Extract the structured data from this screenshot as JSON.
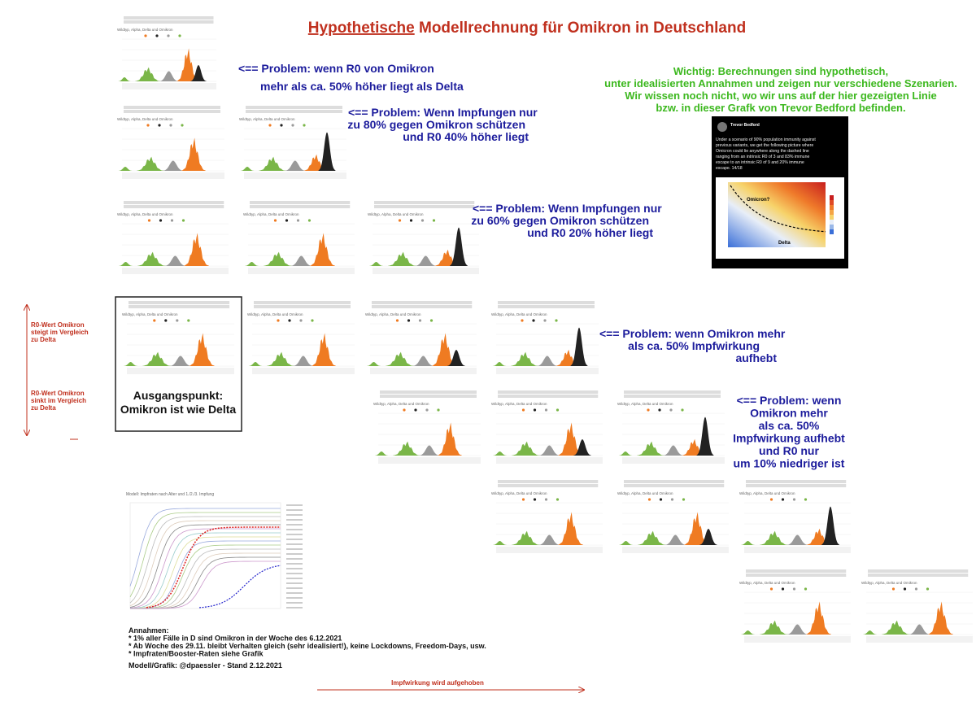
{
  "title_underlined": "Hypothetische",
  "title_rest": "Modellrechnung für Omikron in Deutschland",
  "thumb_title": "Wildtyp, Alpha, Delta und Omikron",
  "vacc_title": "Modell: Impfraten nach Alter und 1./2./3. Impfung",
  "annotations": [
    [
      "<== Problem: wenn R0 von Omikron",
      "mehr als ca. 50% höher liegt als Delta"
    ],
    [
      "<== Problem: Wenn Impfungen nur",
      "zu 80% gegen Omikron schützen",
      "und R0 40% höher liegt"
    ],
    [
      "<== Problem: Wenn Impfungen nur",
      "zu 60% gegen Omikron schützen",
      "und R0 20% höher liegt"
    ],
    [
      "<== Problem: wenn Omikron mehr",
      "als ca. 50% Impfwirkung",
      "aufhebt"
    ],
    [
      "<== Problem: wenn",
      "Omikron mehr",
      "als ca. 50%",
      "Impfwirkung aufhebt",
      "und R0 nur",
      "um 10% niedriger ist"
    ]
  ],
  "note": [
    "Wichtig: Berechnungen sind hypothetisch,",
    "unter idealisierten Annahmen und zeigen nur verschiedene Szenarien.",
    "Wir wissen noch nicht, wo wir uns auf der hier gezeigten Linie",
    "bzw. in dieser Grafk von Trevor Bedford befinden."
  ],
  "tweet": {
    "author": "Trevor Bedford",
    "text": [
      "Under a scenario of 90% population immunity against",
      "previous variants, we get the following picture where",
      "Omicron could lie anywhere along the dashed line",
      "ranging from an intrinsic R0 of 3 and 83% immune",
      "escape to an intrinsic R0 of 9 and 20% immune",
      "escape. 14/18"
    ],
    "omicron": "Omicron?",
    "delta": "Delta"
  },
  "side_up": [
    "R0-Wert Omikron",
    "steigt im Vergleich",
    "zu Delta"
  ],
  "side_down": [
    "R0-Wert Omikron",
    "sinkt im Vergleich",
    "zu Delta"
  ],
  "start_box": [
    "Ausgangspunkt:",
    "Omikron ist wie Delta"
  ],
  "assumptions": [
    "Annahmen:",
    "* 1% aller Fälle in D sind Omikron in der Woche des 6.12.2021",
    "* Ab Woche des 29.11. bleibt Verhalten gleich (sehr idealisiert!), keine Lockdowns, Freedom-Days, usw.",
    "* Impfraten/Booster-Raten siehe Grafik"
  ],
  "credit": "Modell/Grafik: @dpaessler - Stand 2.12.2021",
  "bottom_arrow": "Impfwirkung wird aufgehoben"
}
